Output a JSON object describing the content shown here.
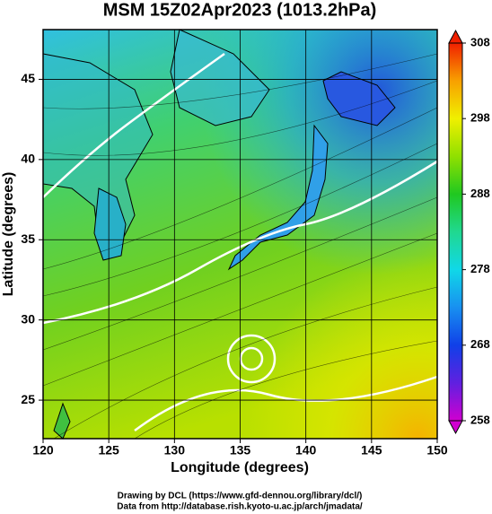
{
  "chart_data": {
    "type": "map",
    "title": "MSM 15Z02Apr2023 (1013.2hPa)",
    "xlabel": "Longitude (degrees)",
    "ylabel": "Latitude  (degrees)",
    "xlim": [
      120,
      150
    ],
    "xticks": [
      120,
      125,
      130,
      135,
      140,
      145,
      150
    ],
    "ylim": [
      22.6,
      48.1
    ],
    "yticks": [
      25,
      30,
      35,
      40,
      45
    ],
    "grid": true,
    "colorbar": {
      "lim": [
        258,
        308
      ],
      "ticks": [
        258,
        268,
        278,
        288,
        298,
        308
      ],
      "colors": [
        "#d000d0",
        "#6020e0",
        "#1040e8",
        "#1890f0",
        "#10d8e8",
        "#20d890",
        "#20c820",
        "#90e000",
        "#f0f000",
        "#f8a000",
        "#f02000"
      ]
    },
    "footer": [
      "Drawing by DCL (https://www.gfd-dennou.org/library/dcl/)",
      "Data from http://database.rish.kyoto-u.ac.jp/arch/jmadata/"
    ]
  }
}
